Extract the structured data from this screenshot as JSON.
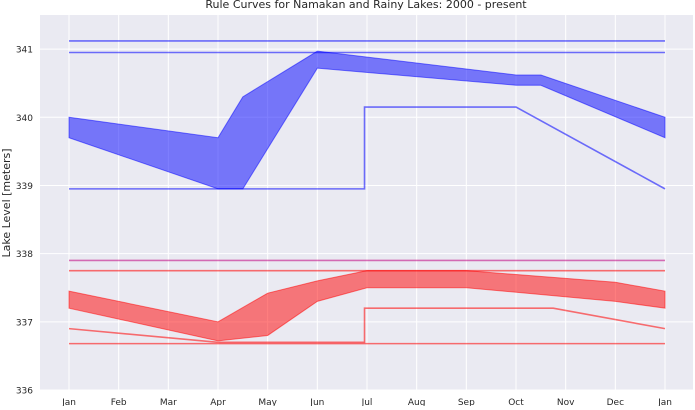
{
  "chart_data": {
    "type": "area",
    "title": "Rule Curves for Namakan and Rainy Lakes: 2000 - present",
    "xlabel": "",
    "ylabel": "Lake Level [meters]",
    "x_ticks": [
      "Jan",
      "Feb",
      "Mar",
      "Apr",
      "May",
      "Jun",
      "Jul",
      "Aug",
      "Sep",
      "Oct",
      "Nov",
      "Dec",
      "Jan"
    ],
    "ylim": [
      336,
      341.5
    ],
    "y_ticks": [
      336,
      337,
      338,
      339,
      340,
      341
    ],
    "grid": true,
    "colors": {
      "namakan": "#0000ff",
      "rainy": "#ff0000",
      "background": "#eaeaf2",
      "grid": "#ffffff",
      "purple": "#c0007f"
    },
    "bands": [
      {
        "lake": "Namakan",
        "color": "#0000ff",
        "x": [
          0,
          3,
          3.5,
          5,
          9,
          9.5,
          12
        ],
        "upper": [
          340.0,
          339.7,
          340.3,
          340.97,
          340.62,
          340.62,
          340.0
        ],
        "lower": [
          339.7,
          338.95,
          338.95,
          340.72,
          340.47,
          340.47,
          339.7
        ]
      },
      {
        "lake": "Rainy",
        "color": "#ff0000",
        "x": [
          0,
          3,
          4,
          5,
          6,
          8,
          11,
          12
        ],
        "upper": [
          337.45,
          337.0,
          337.42,
          337.6,
          337.75,
          337.75,
          337.58,
          337.45
        ],
        "lower": [
          337.2,
          336.72,
          336.8,
          337.3,
          337.5,
          337.5,
          337.3,
          337.2
        ]
      }
    ],
    "lines": [
      {
        "lake": "Namakan",
        "color": "#0000ff",
        "x": [
          0,
          12
        ],
        "y": [
          341.12,
          341.12
        ]
      },
      {
        "lake": "Namakan",
        "color": "#0000ff",
        "x": [
          0,
          12
        ],
        "y": [
          340.95,
          340.95
        ]
      },
      {
        "lake": "Namakan",
        "color": "#0000ff",
        "x": [
          0,
          5.95,
          5.95,
          9,
          12
        ],
        "y": [
          338.95,
          338.95,
          340.15,
          340.15,
          338.95
        ]
      },
      {
        "lake": "Namakan",
        "color": "#c0007f",
        "x": [
          0,
          12
        ],
        "y": [
          337.9,
          337.9
        ]
      },
      {
        "lake": "Rainy",
        "color": "#ff0000",
        "x": [
          0,
          12
        ],
        "y": [
          337.75,
          337.75
        ]
      },
      {
        "lake": "Rainy",
        "color": "#ff0000",
        "x": [
          0,
          3,
          5.95,
          5.95,
          9.75,
          12
        ],
        "y": [
          336.9,
          336.7,
          336.7,
          337.2,
          337.2,
          336.9
        ]
      },
      {
        "lake": "Rainy",
        "color": "#ff0000",
        "x": [
          0,
          12
        ],
        "y": [
          336.68,
          336.68
        ]
      }
    ]
  }
}
